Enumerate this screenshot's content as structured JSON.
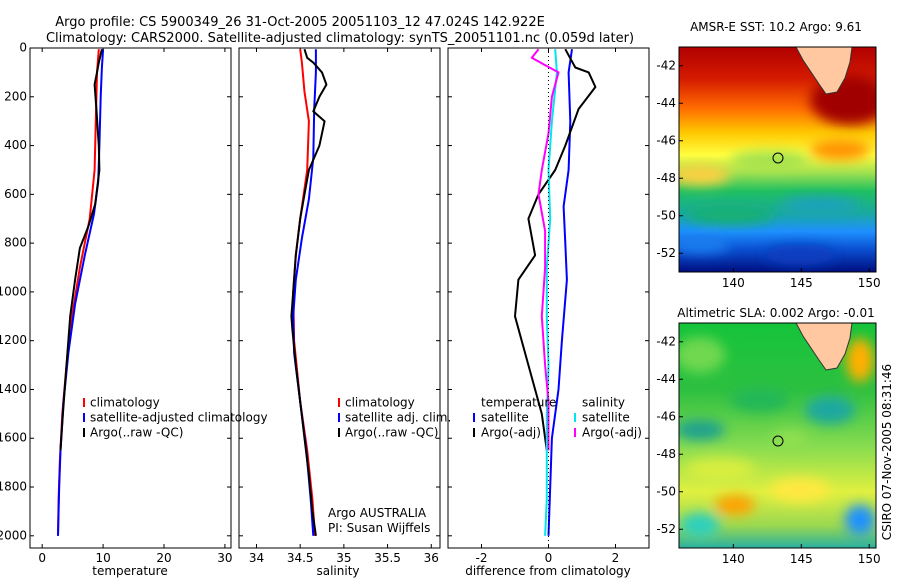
{
  "header": {
    "title_line1": "Argo profile: CS 5900349_26 31-Oct-2005 20051103_12 47.024S 142.922E",
    "title_line2": "Climatology: CARS2000. Satellite-adjusted climatology: synTS_20051101.nc (0.059d later)"
  },
  "footer": {
    "institution": "Argo AUSTRALIA",
    "pi": "PI: Susan Wijffels",
    "timestamp": "CSIRO 07-Nov-2005 08:31:46"
  },
  "colors": {
    "climatology": "#ff0000",
    "satellite": "#0000ff",
    "argo": "#000000",
    "salinity_satellite": "#00e5ee",
    "salinity_argo": "#ff00ff"
  },
  "chart_data": [
    {
      "type": "line",
      "id": "temperature",
      "xlabel": "temperature",
      "ylabel": "",
      "xlim": [
        -2,
        31
      ],
      "ylim": [
        2050,
        0
      ],
      "xticks": [
        0,
        10,
        20,
        30
      ],
      "yticks": [
        0,
        200,
        400,
        600,
        800,
        1000,
        1200,
        1400,
        1600,
        1800,
        2000
      ],
      "legend": {
        "placement": "lower-right",
        "entries": [
          "climatology",
          "satellite-adjusted climatology",
          "Argo(..raw -QC)"
        ]
      },
      "series": [
        {
          "name": "climatology",
          "color": "#ff0000",
          "points": [
            [
              9.3,
              5
            ],
            [
              9.0,
              100
            ],
            [
              8.8,
              300
            ],
            [
              8.6,
              500
            ],
            [
              7.8,
              700
            ],
            [
              6.2,
              900
            ],
            [
              4.9,
              1100
            ],
            [
              4.0,
              1300
            ],
            [
              3.3,
              1500
            ],
            [
              2.9,
              1700
            ],
            [
              2.7,
              1850
            ],
            [
              2.6,
              2000
            ]
          ]
        },
        {
          "name": "satellite-adjusted climatology",
          "color": "#0000ff",
          "points": [
            [
              10.0,
              5
            ],
            [
              9.8,
              80
            ],
            [
              9.6,
              200
            ],
            [
              9.4,
              400
            ],
            [
              9.2,
              550
            ],
            [
              8.5,
              680
            ],
            [
              7.0,
              850
            ],
            [
              5.4,
              1050
            ],
            [
              4.3,
              1250
            ],
            [
              3.5,
              1450
            ],
            [
              3.0,
              1650
            ],
            [
              2.8,
              1800
            ],
            [
              2.6,
              2000
            ]
          ]
        },
        {
          "name": "Argo(..raw -QC)",
          "color": "#000000",
          "points": [
            [
              9.8,
              5
            ],
            [
              9.3,
              60
            ],
            [
              9.0,
              100
            ],
            [
              8.6,
              150
            ],
            [
              8.9,
              250
            ],
            [
              9.3,
              400
            ],
            [
              9.4,
              500
            ],
            [
              8.7,
              640
            ],
            [
              7.6,
              730
            ],
            [
              6.2,
              820
            ],
            [
              5.4,
              950
            ],
            [
              4.6,
              1100
            ],
            [
              4.0,
              1300
            ],
            [
              3.4,
              1500
            ],
            [
              3.0,
              1650
            ]
          ]
        }
      ]
    },
    {
      "type": "line",
      "id": "salinity",
      "xlabel": "salinity",
      "ylabel": "",
      "xlim": [
        33.8,
        36.1
      ],
      "ylim": [
        2050,
        0
      ],
      "xticks": [
        34,
        34.5,
        35,
        35.5,
        36
      ],
      "xtick_labels": [
        "34",
        "34.5",
        "35",
        "35.5",
        "36"
      ],
      "legend": {
        "placement": "lower-right",
        "entries": [
          "climatology",
          "satellite adj. clim.",
          "Argo(..raw -QC)"
        ]
      },
      "series": [
        {
          "name": "climatology",
          "color": "#ff0000",
          "points": [
            [
              34.5,
              5
            ],
            [
              34.52,
              60
            ],
            [
              34.55,
              180
            ],
            [
              34.6,
              300
            ],
            [
              34.58,
              500
            ],
            [
              34.5,
              700
            ],
            [
              34.45,
              850
            ],
            [
              34.42,
              1000
            ],
            [
              34.43,
              1200
            ],
            [
              34.5,
              1450
            ],
            [
              34.58,
              1650
            ],
            [
              34.64,
              1850
            ],
            [
              34.67,
              2000
            ]
          ]
        },
        {
          "name": "satellite adj. clim.",
          "color": "#0000ff",
          "points": [
            [
              34.68,
              5
            ],
            [
              34.68,
              100
            ],
            [
              34.66,
              250
            ],
            [
              34.65,
              450
            ],
            [
              34.6,
              620
            ],
            [
              34.52,
              780
            ],
            [
              34.45,
              950
            ],
            [
              34.42,
              1100
            ],
            [
              34.43,
              1250
            ],
            [
              34.5,
              1450
            ],
            [
              34.57,
              1650
            ],
            [
              34.62,
              1850
            ],
            [
              34.65,
              2000
            ]
          ]
        },
        {
          "name": "Argo(..raw -QC)",
          "color": "#000000",
          "points": [
            [
              34.55,
              5
            ],
            [
              34.58,
              40
            ],
            [
              34.65,
              60
            ],
            [
              34.75,
              100
            ],
            [
              34.8,
              150
            ],
            [
              34.72,
              200
            ],
            [
              34.65,
              260
            ],
            [
              34.78,
              300
            ],
            [
              34.72,
              400
            ],
            [
              34.6,
              500
            ],
            [
              34.55,
              600
            ],
            [
              34.5,
              700
            ],
            [
              34.45,
              850
            ],
            [
              34.42,
              1000
            ],
            [
              34.4,
              1100
            ],
            [
              34.41,
              1150
            ],
            [
              34.45,
              1300
            ],
            [
              34.5,
              1450
            ],
            [
              34.55,
              1600
            ],
            [
              34.6,
              1750
            ],
            [
              34.64,
              1900
            ],
            [
              34.68,
              2000
            ]
          ]
        }
      ]
    },
    {
      "type": "line",
      "id": "difference",
      "xlabel": "difference from climatology",
      "ylabel": "",
      "xlim": [
        -3,
        3
      ],
      "ylim": [
        2050,
        0
      ],
      "xticks": [
        -2,
        0,
        2
      ],
      "legend": {
        "placement": "lower",
        "groups": [
          {
            "title": "temperature",
            "entries": [
              "satellite",
              "Argo(-adj)"
            ]
          },
          {
            "title": "salinity",
            "entries": [
              "satellite",
              "Argo(-adj)"
            ]
          }
        ]
      },
      "series": [
        {
          "name": "temperature satellite",
          "color": "#0000ff",
          "points": [
            [
              0.7,
              5
            ],
            [
              0.6,
              100
            ],
            [
              0.65,
              300
            ],
            [
              0.6,
              500
            ],
            [
              0.45,
              650
            ],
            [
              0.5,
              800
            ],
            [
              0.55,
              950
            ],
            [
              0.4,
              1200
            ],
            [
              0.3,
              1400
            ],
            [
              0.1,
              1600
            ],
            [
              0.05,
              1800
            ],
            [
              0.0,
              2000
            ]
          ]
        },
        {
          "name": "temperature Argo(-adj)",
          "color": "#000000",
          "points": [
            [
              0.5,
              5
            ],
            [
              0.8,
              80
            ],
            [
              1.2,
              100
            ],
            [
              1.4,
              160
            ],
            [
              0.9,
              250
            ],
            [
              0.5,
              400
            ],
            [
              0.2,
              500
            ],
            [
              -0.3,
              600
            ],
            [
              -0.6,
              700
            ],
            [
              -0.4,
              850
            ],
            [
              -0.9,
              950
            ],
            [
              -1.0,
              1100
            ],
            [
              -0.6,
              1300
            ],
            [
              -0.2,
              1500
            ],
            [
              -0.05,
              1650
            ]
          ]
        },
        {
          "name": "salinity satellite",
          "color": "#00e5ee",
          "points": [
            [
              0.2,
              5
            ],
            [
              0.25,
              100
            ],
            [
              0.1,
              300
            ],
            [
              0.0,
              500
            ],
            [
              0.05,
              700
            ],
            [
              -0.05,
              900
            ],
            [
              -0.05,
              1100
            ],
            [
              0.0,
              1300
            ],
            [
              -0.05,
              1500
            ],
            [
              -0.05,
              1700
            ],
            [
              -0.05,
              1850
            ],
            [
              -0.1,
              2000
            ]
          ]
        },
        {
          "name": "salinity Argo(-adj)",
          "color": "#ff00ff",
          "points": [
            [
              -0.3,
              5
            ],
            [
              -0.5,
              40
            ],
            [
              -0.1,
              70
            ],
            [
              0.3,
              100
            ],
            [
              0.1,
              200
            ],
            [
              0.0,
              350
            ],
            [
              -0.2,
              500
            ],
            [
              -0.3,
              600
            ],
            [
              -0.1,
              750
            ],
            [
              -0.1,
              900
            ],
            [
              -0.2,
              1100
            ],
            [
              -0.1,
              1300
            ],
            [
              0.0,
              1450
            ],
            [
              0.0,
              1650
            ]
          ]
        }
      ]
    },
    {
      "type": "heatmap",
      "id": "sst-map",
      "title": "AMSR-E SST: 10.2  Argo: 9.61",
      "xlim": [
        136,
        150.5
      ],
      "ylim": [
        -53,
        -41
      ],
      "xticks": [
        140,
        145,
        150
      ],
      "yticks": [
        -42,
        -44,
        -46,
        -48,
        -50,
        -52
      ],
      "marker": {
        "lon": 142.92,
        "lat": -47.02
      }
    },
    {
      "type": "heatmap",
      "id": "sla-map",
      "title": "Altimetric SLA: 0.002  Argo: -0.01",
      "xlim": [
        136,
        150.5
      ],
      "ylim": [
        -53,
        -41
      ],
      "xticks": [
        140,
        145,
        150
      ],
      "yticks": [
        -42,
        -44,
        -46,
        -48,
        -50,
        -52
      ],
      "marker": {
        "lon": 142.92,
        "lat": -47.02
      }
    }
  ]
}
